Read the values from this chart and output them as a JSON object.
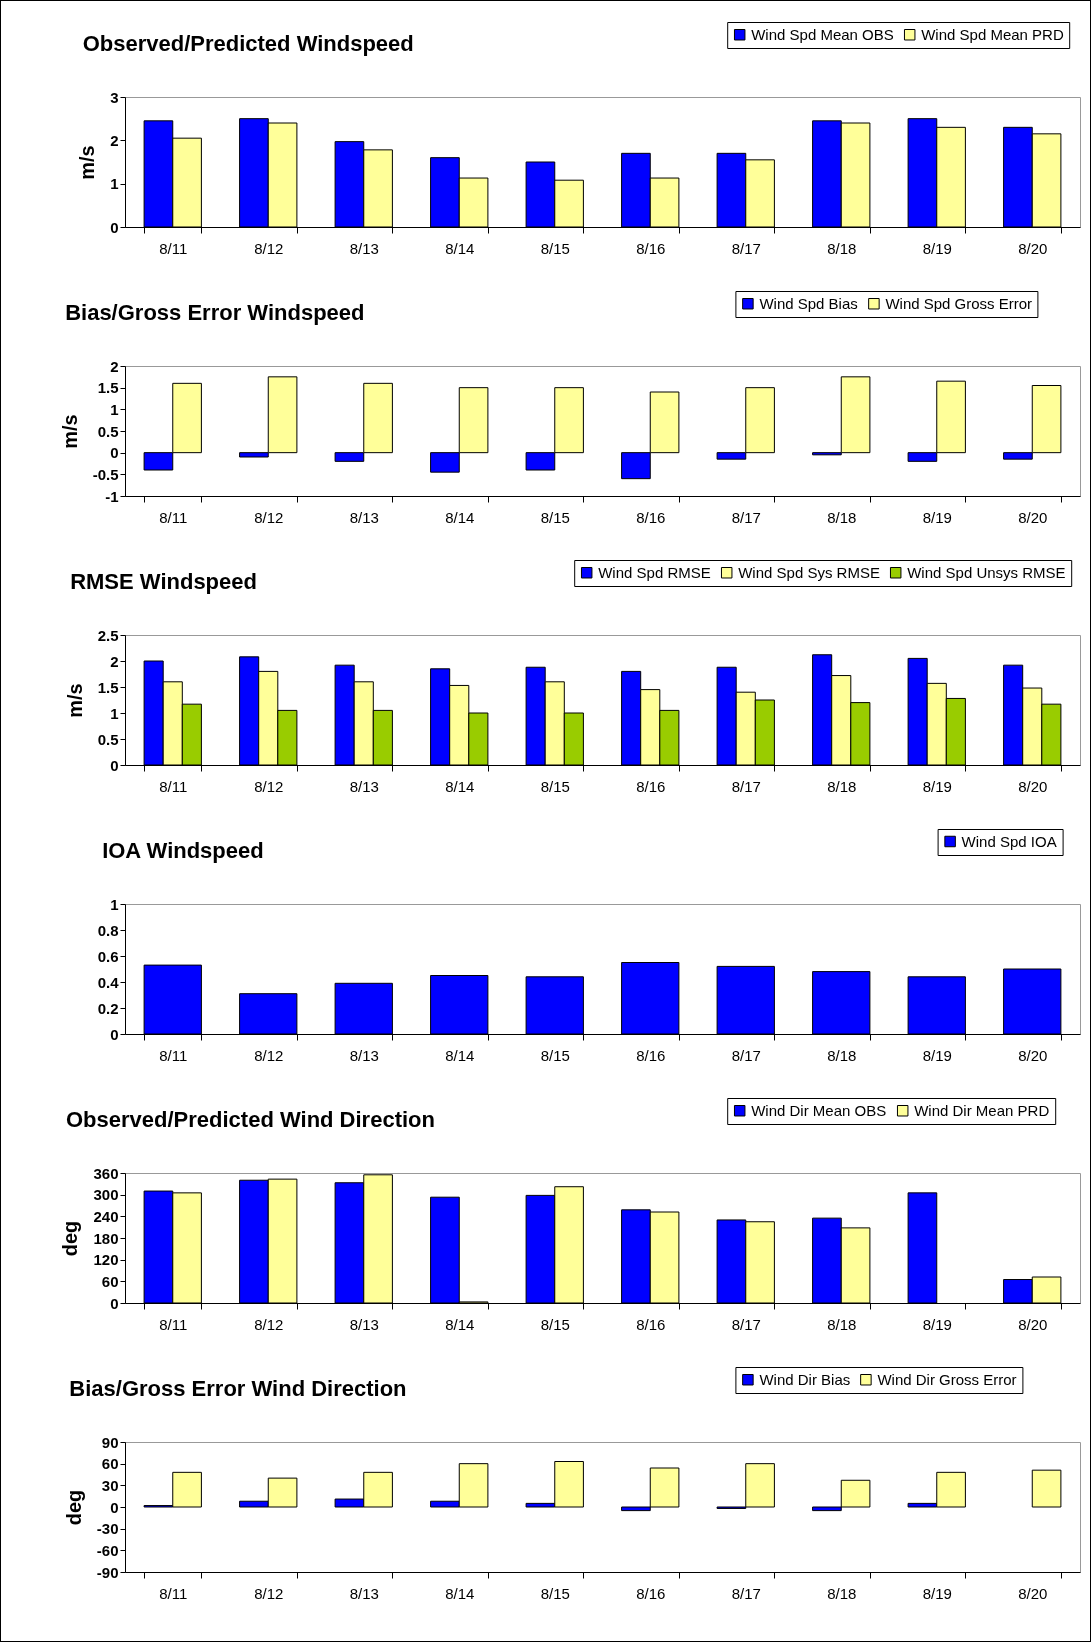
{
  "chart_data": [
    {
      "type": "bar",
      "title": "Observed/Predicted Windspeed",
      "ylabel": "m/s",
      "categories": [
        "8/11",
        "8/12",
        "8/13",
        "8/14",
        "8/15",
        "8/16",
        "8/17",
        "8/18",
        "8/19",
        "8/20"
      ],
      "ylim": [
        0,
        3
      ],
      "yticks": [
        0,
        1,
        2,
        3
      ],
      "grid": false,
      "legend": "top right",
      "series": [
        {
          "name": "Wind Spd Mean OBS",
          "color": "#0000ff",
          "values": [
            2.45,
            2.5,
            1.97,
            1.6,
            1.5,
            1.7,
            1.7,
            2.45,
            2.5,
            2.3
          ]
        },
        {
          "name": "Wind Spd Mean PRD",
          "color": "#ffff99",
          "values": [
            2.05,
            2.4,
            1.78,
            1.13,
            1.08,
            1.13,
            1.55,
            2.4,
            2.3,
            2.15
          ]
        }
      ]
    },
    {
      "type": "bar",
      "title": "Bias/Gross Error Windspeed",
      "ylabel": "m/s",
      "categories": [
        "8/11",
        "8/12",
        "8/13",
        "8/14",
        "8/15",
        "8/16",
        "8/17",
        "8/18",
        "8/19",
        "8/20"
      ],
      "ylim": [
        -1,
        2
      ],
      "yticks": [
        -1,
        -0.5,
        0,
        0.5,
        1,
        1.5,
        2
      ],
      "grid": false,
      "legend": "top right",
      "series": [
        {
          "name": "Wind Spd Bias",
          "color": "#0000ff",
          "values": [
            -0.4,
            -0.1,
            -0.2,
            -0.45,
            -0.4,
            -0.6,
            -0.15,
            -0.05,
            -0.2,
            -0.15
          ]
        },
        {
          "name": "Wind Spd Gross Error",
          "color": "#ffff99",
          "values": [
            1.6,
            1.75,
            1.6,
            1.5,
            1.5,
            1.4,
            1.5,
            1.75,
            1.65,
            1.55
          ]
        }
      ]
    },
    {
      "type": "bar",
      "title": "RMSE Windspeed",
      "ylabel": "m/s",
      "categories": [
        "8/11",
        "8/12",
        "8/13",
        "8/14",
        "8/15",
        "8/16",
        "8/17",
        "8/18",
        "8/19",
        "8/20"
      ],
      "ylim": [
        0,
        2.5
      ],
      "yticks": [
        0,
        0.5,
        1,
        1.5,
        2,
        2.5
      ],
      "grid": false,
      "legend": "top right",
      "series": [
        {
          "name": "Wind Spd RMSE",
          "color": "#0000ff",
          "values": [
            2.0,
            2.08,
            1.92,
            1.85,
            1.88,
            1.8,
            1.88,
            2.12,
            2.05,
            1.92
          ]
        },
        {
          "name": "Wind Spd Sys RMSE",
          "color": "#ffff99",
          "values": [
            1.6,
            1.8,
            1.6,
            1.53,
            1.6,
            1.45,
            1.4,
            1.72,
            1.57,
            1.48
          ]
        },
        {
          "name": "Wind Spd Unsys RMSE",
          "color": "#99cc00",
          "values": [
            1.17,
            1.05,
            1.05,
            1.0,
            1.0,
            1.05,
            1.25,
            1.2,
            1.28,
            1.17
          ]
        }
      ]
    },
    {
      "type": "bar",
      "title": "IOA Windspeed",
      "categories": [
        "8/11",
        "8/12",
        "8/13",
        "8/14",
        "8/15",
        "8/16",
        "8/17",
        "8/18",
        "8/19",
        "8/20"
      ],
      "ylim": [
        0,
        1
      ],
      "yticks": [
        0,
        0.2,
        0.4,
        0.6,
        0.8,
        1
      ],
      "grid": false,
      "legend": "top right",
      "series": [
        {
          "name": "Wind Spd IOA",
          "color": "#0000ff",
          "values": [
            0.53,
            0.31,
            0.39,
            0.45,
            0.44,
            0.55,
            0.52,
            0.48,
            0.44,
            0.5
          ]
        }
      ]
    },
    {
      "type": "bar",
      "title": "Observed/Predicted Wind Direction",
      "ylabel": "deg",
      "categories": [
        "8/11",
        "8/12",
        "8/13",
        "8/14",
        "8/15",
        "8/16",
        "8/17",
        "8/18",
        "8/19",
        "8/20"
      ],
      "ylim": [
        0,
        360
      ],
      "yticks": [
        0,
        60,
        120,
        180,
        240,
        300,
        360
      ],
      "grid": false,
      "legend": "top right",
      "series": [
        {
          "name": "Wind Dir Mean OBS",
          "color": "#0000ff",
          "values": [
            310,
            340,
            333,
            293,
            298,
            258,
            230,
            235,
            305,
            65
          ]
        },
        {
          "name": "Wind Dir Mean PRD",
          "color": "#ffff99",
          "values": [
            305,
            343,
            355,
            3,
            322,
            252,
            225,
            208,
            null,
            72
          ]
        }
      ]
    },
    {
      "type": "bar",
      "title": "Bias/Gross Error Wind Direction",
      "ylabel": "deg",
      "categories": [
        "8/11",
        "8/12",
        "8/13",
        "8/14",
        "8/15",
        "8/16",
        "8/17",
        "8/18",
        "8/19",
        "8/20"
      ],
      "ylim": [
        -90,
        90
      ],
      "yticks": [
        -90,
        -60,
        -30,
        0,
        30,
        60,
        90
      ],
      "grid": false,
      "legend": "top right",
      "series": [
        {
          "name": "Wind Dir Bias",
          "color": "#0000ff",
          "values": [
            2,
            8,
            11,
            8,
            5,
            -5,
            -2,
            -5,
            5,
            null
          ]
        },
        {
          "name": "Wind Dir Gross Error",
          "color": "#ffff99",
          "values": [
            48,
            40,
            48,
            60,
            63,
            54,
            60,
            37,
            48,
            51
          ]
        }
      ]
    }
  ]
}
